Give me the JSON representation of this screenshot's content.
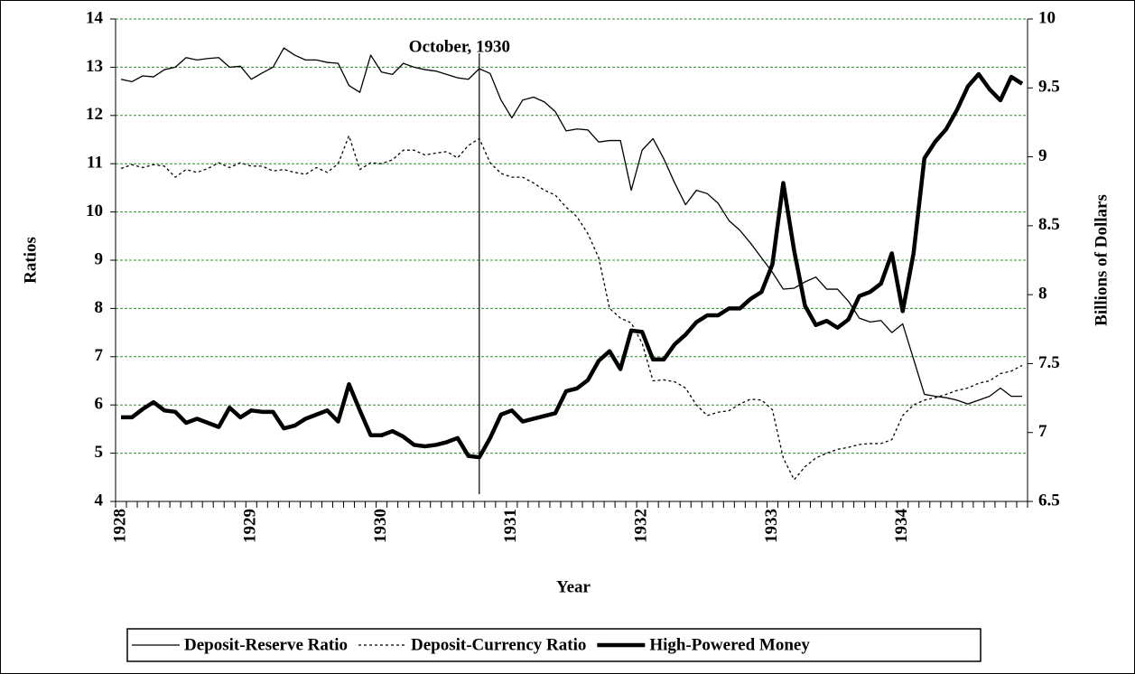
{
  "chart_data": {
    "type": "line",
    "categories": [
      "1928",
      null,
      null,
      null,
      null,
      null,
      null,
      null,
      null,
      null,
      null,
      null,
      "1929",
      null,
      null,
      null,
      null,
      null,
      null,
      null,
      null,
      null,
      null,
      null,
      "1930",
      null,
      null,
      null,
      null,
      null,
      null,
      null,
      null,
      null,
      null,
      null,
      "1931",
      null,
      null,
      null,
      null,
      null,
      null,
      null,
      null,
      null,
      null,
      null,
      "1932",
      null,
      null,
      null,
      null,
      null,
      null,
      null,
      null,
      null,
      null,
      null,
      "1933",
      null,
      null,
      null,
      null,
      null,
      null,
      null,
      null,
      null,
      null,
      null,
      "1934",
      null,
      null,
      null,
      null,
      null,
      null,
      null,
      null,
      null,
      null,
      null
    ],
    "xlabel": "Year",
    "ylabel": "Ratios",
    "y2label": "Billions of Dollars",
    "annotation": "October, 1930",
    "ylim": [
      4,
      14
    ],
    "yticks": [
      4,
      5,
      6,
      7,
      8,
      9,
      10,
      11,
      12,
      13,
      14
    ],
    "y2lim": [
      6.5,
      10
    ],
    "y2ticks": [
      6.5,
      7,
      7.5,
      8,
      8.5,
      9,
      9.5,
      10
    ],
    "grid": true,
    "grid_color": "#2e8b2e",
    "series": [
      {
        "name": "Deposit-Reserve Ratio",
        "color": "#000000",
        "style": "thin",
        "values": [
          12.75,
          12.7,
          12.82,
          12.8,
          12.95,
          13.0,
          13.2,
          13.15,
          13.18,
          13.2,
          13.0,
          13.02,
          12.75,
          12.88,
          13.0,
          13.4,
          13.25,
          13.15,
          13.15,
          13.1,
          13.08,
          12.62,
          12.48,
          13.25,
          12.9,
          12.85,
          13.08,
          13.0,
          12.95,
          12.92,
          12.85,
          12.78,
          12.75,
          12.97,
          12.87,
          12.32,
          11.95,
          12.32,
          12.38,
          12.28,
          12.08,
          11.68,
          11.72,
          11.7,
          11.45,
          11.48,
          11.48,
          10.45,
          11.28,
          11.52,
          11.1,
          10.6,
          10.15,
          10.45,
          10.38,
          10.18,
          9.82,
          9.62,
          9.35,
          9.05,
          8.75,
          8.4,
          8.42,
          8.55,
          8.65,
          8.4,
          8.4,
          8.15,
          7.8,
          7.72,
          7.75,
          7.5,
          7.68,
          6.95,
          6.22,
          6.18,
          6.15,
          6.1,
          6.02,
          6.1,
          6.18,
          6.35,
          6.18,
          6.18
        ]
      },
      {
        "name": "Deposit-Currency Ratio",
        "color": "#000000",
        "style": "dotted",
        "values": [
          10.9,
          10.98,
          10.92,
          10.98,
          10.95,
          10.72,
          10.88,
          10.82,
          10.9,
          11.02,
          10.92,
          11.02,
          10.95,
          10.95,
          10.85,
          10.88,
          10.82,
          10.78,
          10.92,
          10.82,
          11.0,
          11.58,
          10.88,
          11.02,
          11.0,
          11.08,
          11.28,
          11.28,
          11.18,
          11.22,
          11.25,
          11.12,
          11.38,
          11.52,
          11.02,
          10.8,
          10.72,
          10.72,
          10.6,
          10.45,
          10.35,
          10.1,
          9.9,
          9.55,
          9.05,
          8.0,
          7.8,
          7.7,
          7.28,
          6.5,
          6.52,
          6.48,
          6.35,
          6.0,
          5.78,
          5.85,
          5.88,
          6.02,
          6.12,
          6.1,
          5.9,
          4.9,
          4.45,
          4.72,
          4.9,
          5.0,
          5.08,
          5.12,
          5.18,
          5.2,
          5.2,
          5.28,
          5.78,
          6.0,
          6.1,
          6.15,
          6.22,
          6.3,
          6.35,
          6.45,
          6.5,
          6.65,
          6.7,
          6.82
        ]
      },
      {
        "name": "High-Powered Money",
        "color": "#000000",
        "style": "thick",
        "axis": "y2",
        "values": [
          7.11,
          7.11,
          7.17,
          7.22,
          7.16,
          7.15,
          7.07,
          7.1,
          7.07,
          7.04,
          7.18,
          7.11,
          7.16,
          7.15,
          7.15,
          7.03,
          7.05,
          7.1,
          7.13,
          7.16,
          7.08,
          7.35,
          7.16,
          6.98,
          6.98,
          7.01,
          6.97,
          6.91,
          6.9,
          6.91,
          6.93,
          6.96,
          6.83,
          6.82,
          6.96,
          7.13,
          7.16,
          7.08,
          7.1,
          7.12,
          7.14,
          7.3,
          7.32,
          7.38,
          7.52,
          7.59,
          7.46,
          7.74,
          7.73,
          7.53,
          7.53,
          7.64,
          7.71,
          7.8,
          7.85,
          7.85,
          7.9,
          7.9,
          7.97,
          8.02,
          8.22,
          8.81,
          8.32,
          7.92,
          7.78,
          7.81,
          7.76,
          7.82,
          7.99,
          8.02,
          8.08,
          8.3,
          7.88,
          8.3,
          8.99,
          9.11,
          9.2,
          9.34,
          9.51,
          9.6,
          9.49,
          9.41,
          9.58,
          9.53
        ]
      }
    ]
  }
}
